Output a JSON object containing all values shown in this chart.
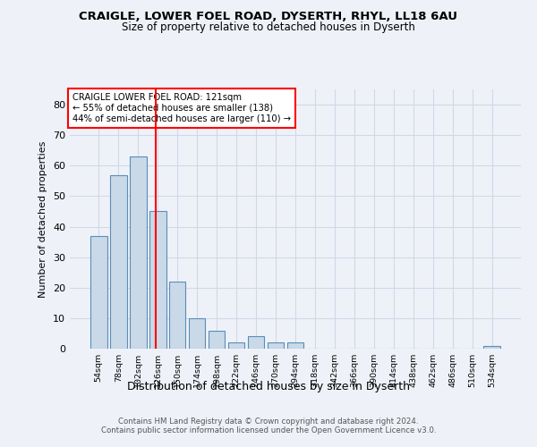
{
  "title_line1": "CRAIGLE, LOWER FOEL ROAD, DYSERTH, RHYL, LL18 6AU",
  "title_line2": "Size of property relative to detached houses in Dyserth",
  "xlabel": "Distribution of detached houses by size in Dyserth",
  "ylabel": "Number of detached properties",
  "bin_labels": [
    "54sqm",
    "78sqm",
    "102sqm",
    "126sqm",
    "150sqm",
    "174sqm",
    "198sqm",
    "222sqm",
    "246sqm",
    "270sqm",
    "294sqm",
    "318sqm",
    "342sqm",
    "366sqm",
    "390sqm",
    "414sqm",
    "438sqm",
    "462sqm",
    "486sqm",
    "510sqm",
    "534sqm"
  ],
  "bar_values": [
    37,
    57,
    63,
    45,
    22,
    10,
    6,
    2,
    4,
    2,
    2,
    0,
    0,
    0,
    0,
    0,
    0,
    0,
    0,
    0,
    1
  ],
  "bar_color": "#c9d9e8",
  "bar_edge_color": "#5b8db8",
  "red_line_index": 2.917,
  "annotation_text_line1": "CRAIGLE LOWER FOEL ROAD: 121sqm",
  "annotation_text_line2": "← 55% of detached houses are smaller (138)",
  "annotation_text_line3": "44% of semi-detached houses are larger (110) →",
  "annotation_box_color": "white",
  "annotation_border_color": "red",
  "ylim": [
    0,
    85
  ],
  "yticks": [
    0,
    10,
    20,
    30,
    40,
    50,
    60,
    70,
    80
  ],
  "grid_color": "#d0d8e8",
  "footer_line1": "Contains HM Land Registry data © Crown copyright and database right 2024.",
  "footer_line2": "Contains public sector information licensed under the Open Government Licence v3.0.",
  "bg_color": "#eef2f8"
}
